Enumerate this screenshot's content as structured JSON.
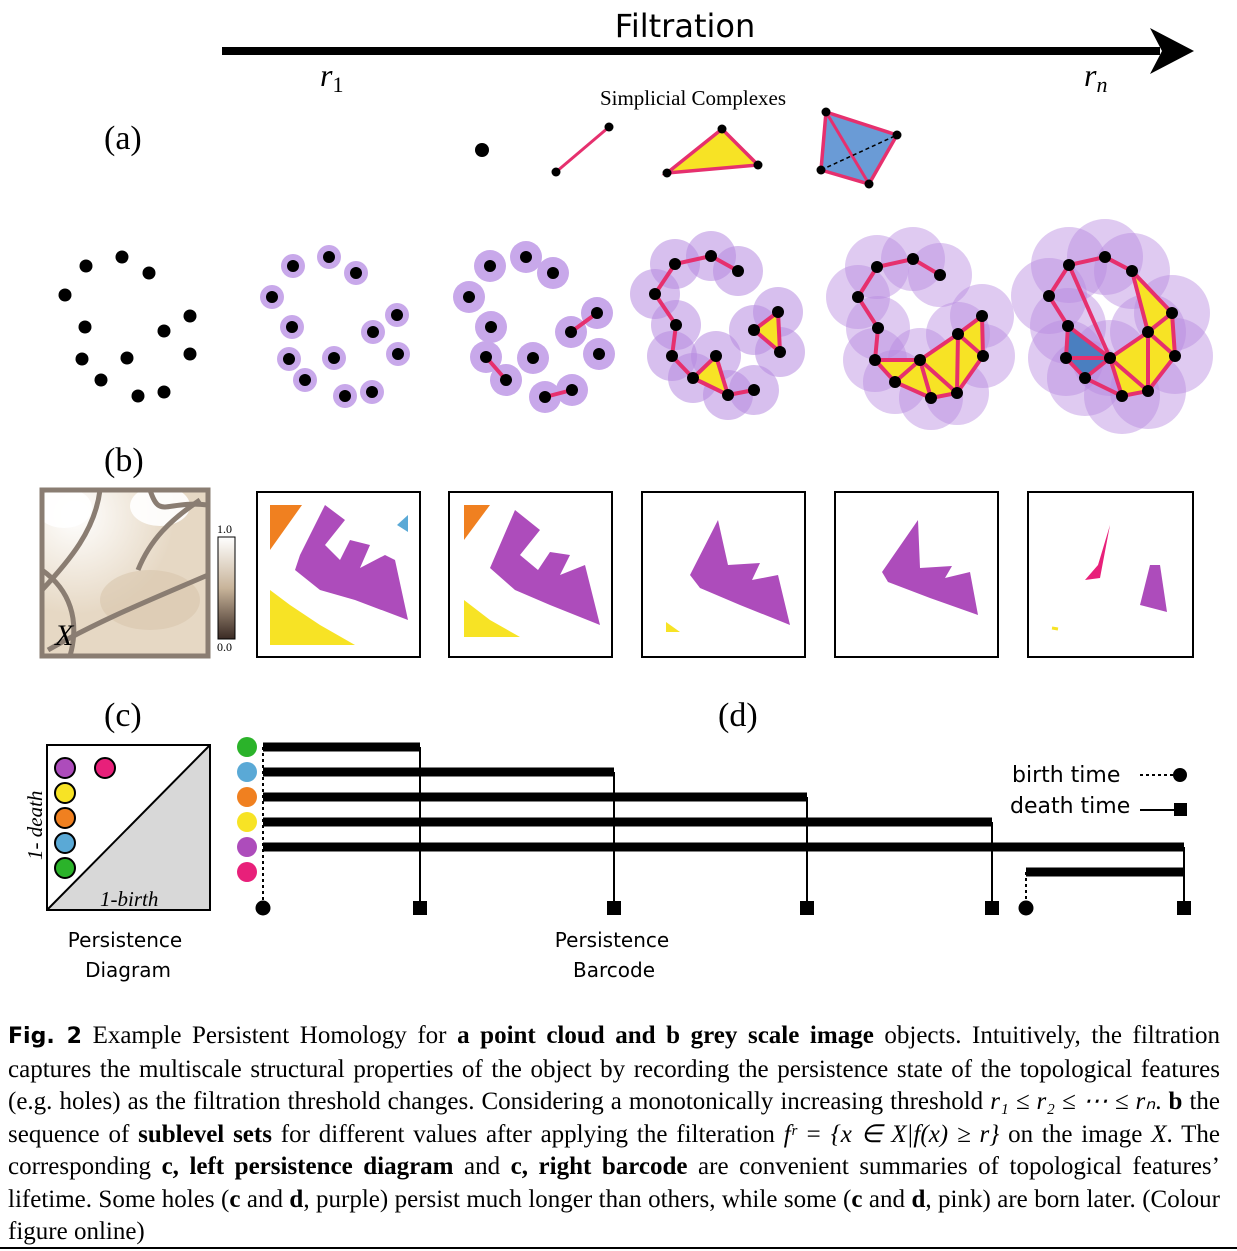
{
  "figure": {
    "filtration_label": "Filtration",
    "r_start": "r",
    "r_start_sub": "1",
    "r_end": "r",
    "r_end_sub": "n",
    "panel_a": "(a)",
    "panel_b": "(b)",
    "panel_c": "(c)",
    "panel_d": "(d)",
    "simplicial_title": "Simplicial Complexes",
    "image_label": "X",
    "colorbar_max": "1.0",
    "colorbar_min": "0.0",
    "diagram_ylabel": "1- death",
    "diagram_xlabel": "1-birth",
    "diagram_title_1": "Persistence",
    "diagram_title_2": "Diagram",
    "barcode_title_1": "Persistence",
    "barcode_title_2": "Barcode",
    "legend_birth": "birth time",
    "legend_death": "death time"
  },
  "colors": {
    "green": "#2bb32a",
    "blue": "#5aa9d6",
    "orange": "#f08020",
    "yellow": "#f7e325",
    "purple": "#ad4cbb",
    "pink": "#e8207a",
    "edge": "#e6306e",
    "disc": "#b78ae0"
  },
  "barcode": [
    {
      "feature": "green",
      "birth_time": 1,
      "death_time": 2
    },
    {
      "feature": "blue",
      "birth_time": 1,
      "death_time": 3
    },
    {
      "feature": "orange",
      "birth_time": 1,
      "death_time": 4
    },
    {
      "feature": "yellow",
      "birth_time": 1,
      "death_time": 5
    },
    {
      "feature": "purple",
      "birth_time": 1,
      "death_time": 6
    },
    {
      "feature": "pink",
      "birth_time": 5,
      "death_time": 6
    }
  ],
  "caption": {
    "label": "Fig. 2",
    "t1": "  Example Persistent Homology for ",
    "b1": "a point cloud and b grey scale image",
    "t2": " objects. Intuitively, the filtration captures the multiscale structural properties of the object by recording the persistence state of the topological features (e.g. holes) as the filtration threshold changes. Considering a monotonically increasing threshold ",
    "math1": "r₁ ≤ r₂ ≤ ⋯ ≤ rₙ",
    "t3": ". ",
    "b2": "b",
    "t4": " the sequence of ",
    "b3": "sublevel sets",
    "t5": " for different values after applying the filteration ",
    "math2": "fʳ = {x ∈ X|f(x) ≥ r}",
    "t6": " on the image ",
    "math3": "X",
    "t7": ". The corresponding ",
    "b4": "c, left persistence diagram",
    "t8": " and ",
    "b5": "c, right barcode",
    "t9": " are convenient summaries of topological features’ lifetime. Some holes (",
    "b6": "c",
    "t10": " and ",
    "b7": "d",
    "t11": ", purple) persist much longer than others, while some (",
    "b8": "c",
    "t12": " and ",
    "b9": "d",
    "t13": ", pink) are born later. (Colour figure online)"
  }
}
